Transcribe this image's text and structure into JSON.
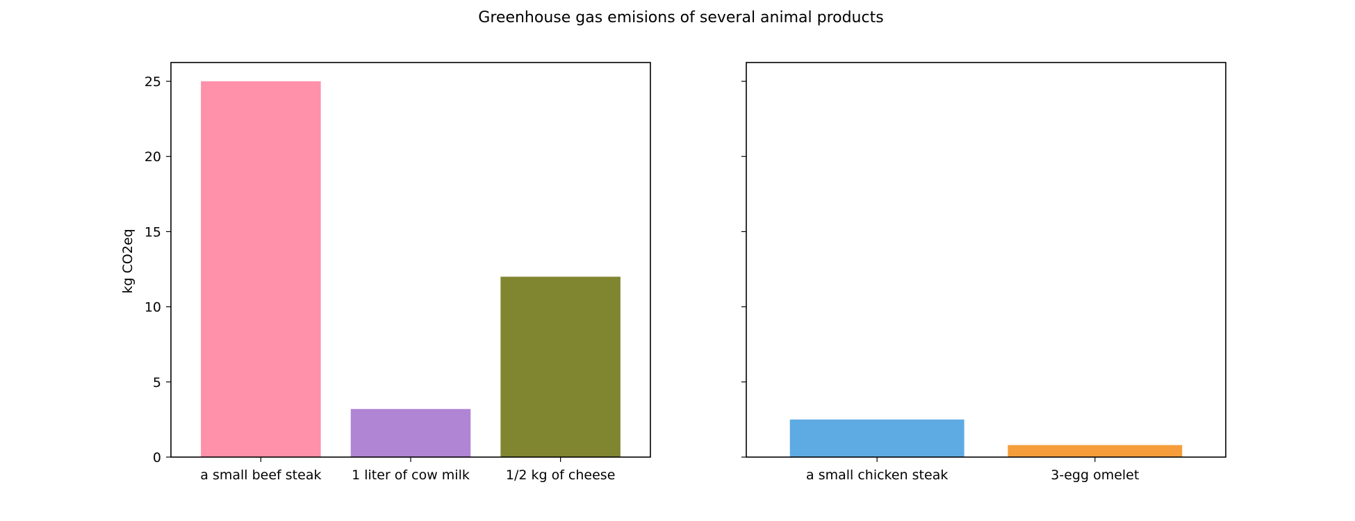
{
  "figure": {
    "title": "Greenhouse gas emisions of several animal products"
  },
  "chart_data": [
    {
      "type": "bar",
      "categories": [
        "a small beef steak",
        "1 liter of cow milk",
        "1/2 kg of cheese"
      ],
      "values": [
        25,
        3.2,
        12
      ],
      "colors": [
        "#ff91aa",
        "#af85d4",
        "#80852f"
      ],
      "ylabel": "kg CO2eq",
      "xlabel": "",
      "ylim": [
        0,
        26.25
      ],
      "yticks": [
        0,
        5,
        10,
        15,
        20,
        25
      ],
      "grid": false
    },
    {
      "type": "bar",
      "categories": [
        "a small chicken steak",
        "3-egg omelet"
      ],
      "values": [
        2.5,
        0.8
      ],
      "colors": [
        "#5eabe3",
        "#f59d3b"
      ],
      "ylabel": "",
      "xlabel": "",
      "ylim": [
        0,
        26.25
      ],
      "yticks": [
        0,
        5,
        10,
        15,
        20,
        25
      ],
      "shared_y": true,
      "grid": false
    }
  ]
}
